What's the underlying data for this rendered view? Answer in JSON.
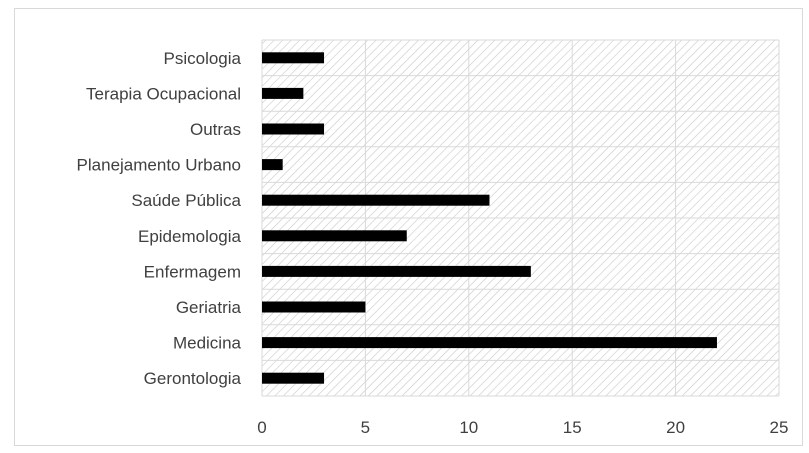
{
  "chart_data": {
    "type": "bar",
    "orientation": "horizontal",
    "categories": [
      "Gerontologia",
      "Medicina",
      "Geriatria",
      "Enfermagem",
      "Epidemologia",
      "Saúde Pública",
      "Planejamento Urbano",
      "Outras",
      "Terapia Ocupacional",
      "Psicologia"
    ],
    "values": [
      3,
      22,
      5,
      13,
      7,
      11,
      1,
      3,
      2,
      3
    ],
    "xlim": [
      0,
      25
    ],
    "xticks": [
      "0",
      "5",
      "10",
      "15",
      "20",
      "25"
    ],
    "grid": true,
    "legend": "none",
    "title": "",
    "xlabel": "",
    "ylabel": "",
    "colors": {
      "bar": "#000000",
      "grid": "#d9d9d9",
      "hatch": "#c8c8c8",
      "text": "#404040"
    }
  }
}
